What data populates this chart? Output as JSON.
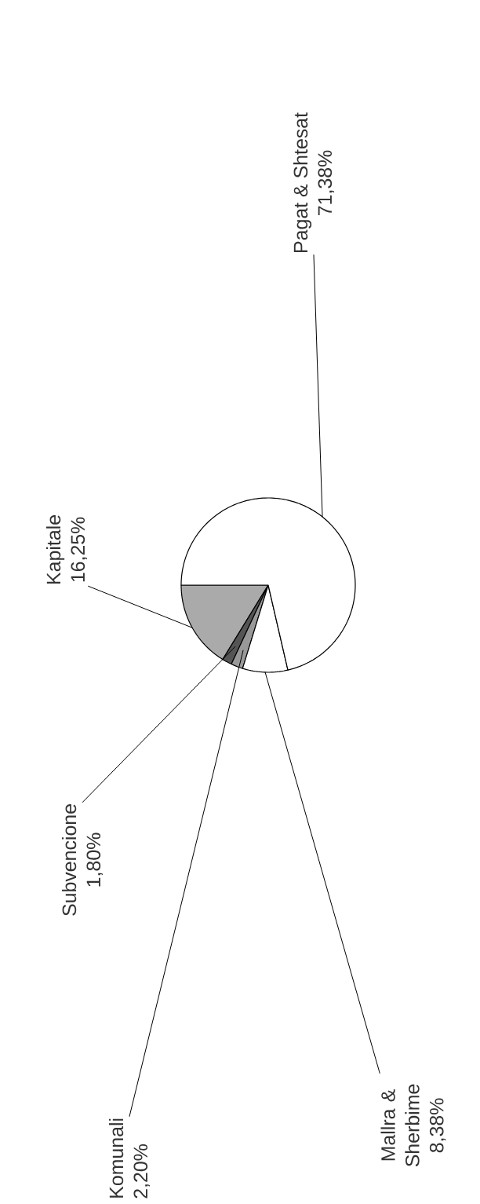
{
  "chart_data": {
    "type": "pie",
    "categories": [
      "Kapitale",
      "Subvencione",
      "Komunali",
      "Mallra & Sherbime",
      "Pagat & Shtesat"
    ],
    "values": [
      16.25,
      1.8,
      2.2,
      8.38,
      71.38
    ],
    "value_labels": [
      "16,25%",
      "1,80%",
      "2,20%",
      "8,38%",
      "71,38%"
    ],
    "colors": [
      "#aaaaaa",
      "#555555",
      "#999999",
      "#ffffff",
      "#ffffff"
    ]
  }
}
